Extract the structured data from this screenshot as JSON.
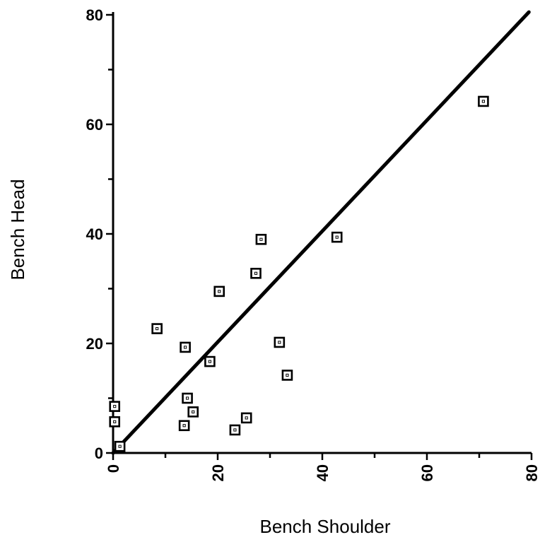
{
  "chart_data": {
    "type": "scatter",
    "title": "",
    "xlabel": "Bench Shoulder",
    "ylabel": "Bench Head",
    "xlim": [
      0,
      80
    ],
    "ylim": [
      0,
      80
    ],
    "xticks": [
      "0",
      "20",
      "40",
      "60",
      "80"
    ],
    "yticks": [
      "0",
      "20",
      "40",
      "60",
      "80"
    ],
    "grid": false,
    "points": [
      {
        "x": 0.3,
        "y": 8.5
      },
      {
        "x": 0.3,
        "y": 5.7
      },
      {
        "x": 1.3,
        "y": 1.2
      },
      {
        "x": 8.4,
        "y": 22.7
      },
      {
        "x": 13.6,
        "y": 5.0
      },
      {
        "x": 13.8,
        "y": 19.3
      },
      {
        "x": 14.2,
        "y": 10.0
      },
      {
        "x": 15.3,
        "y": 7.5
      },
      {
        "x": 18.5,
        "y": 16.7
      },
      {
        "x": 20.3,
        "y": 29.5
      },
      {
        "x": 23.3,
        "y": 4.2
      },
      {
        "x": 25.5,
        "y": 6.4
      },
      {
        "x": 27.3,
        "y": 32.8
      },
      {
        "x": 28.3,
        "y": 39.0
      },
      {
        "x": 31.8,
        "y": 20.2
      },
      {
        "x": 33.3,
        "y": 14.2
      },
      {
        "x": 42.8,
        "y": 39.4
      },
      {
        "x": 70.8,
        "y": 64.2
      }
    ],
    "fit_line": {
      "x": [
        0,
        79.5
      ],
      "y": [
        0,
        80.5
      ]
    }
  }
}
